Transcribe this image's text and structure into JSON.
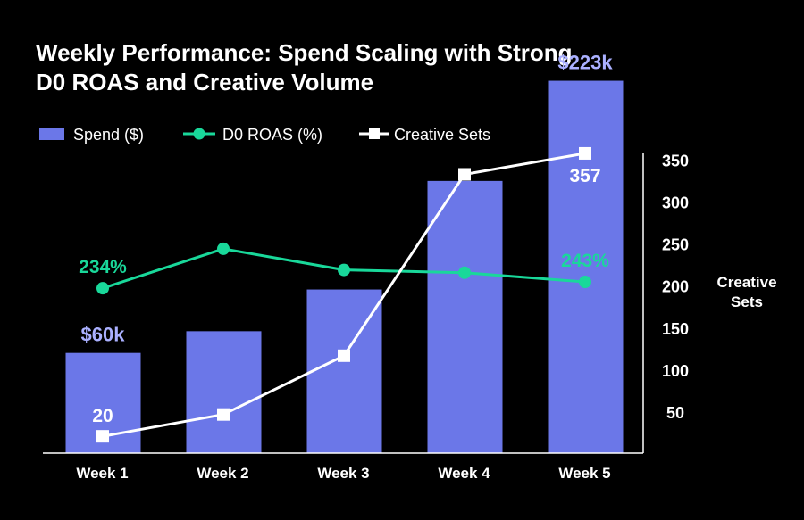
{
  "chart_data": {
    "type": "bar",
    "title_lines": [
      "Weekly Performance: Spend Scaling with Strong",
      "D0 ROAS and Creative Volume"
    ],
    "categories": [
      "Week 1",
      "Week 2",
      "Week 3",
      "Week 4",
      "Week 5"
    ],
    "series": [
      {
        "name": "Spend ($)",
        "type": "bar",
        "values": [
          60,
          73,
          98,
          163,
          223
        ],
        "unit": "$k",
        "data_labels": [
          {
            "index": 0,
            "text": "$60k"
          },
          {
            "index": 4,
            "text": "$223k"
          }
        ],
        "color": "#6b77e8"
      },
      {
        "name": "D0 ROAS (%)",
        "type": "line",
        "values": [
          234,
          290,
          260,
          256,
          243
        ],
        "data_labels": [
          {
            "index": 0,
            "text": "234%"
          },
          {
            "index": 4,
            "text": "243%"
          }
        ],
        "color": "#19d89a"
      },
      {
        "name": "Creative Sets",
        "type": "line",
        "axis": "right",
        "values": [
          20,
          46,
          116,
          332,
          357
        ],
        "data_labels": [
          {
            "index": 0,
            "text": "20"
          },
          {
            "index": 4,
            "text": "357"
          }
        ],
        "color": "#ffffff"
      }
    ],
    "right_axis": {
      "label_lines": [
        "Creative",
        "Sets"
      ],
      "ticks": [
        50,
        100,
        150,
        200,
        250,
        300,
        350
      ],
      "range": [
        0,
        375
      ]
    },
    "spend_axis_range": [
      0,
      250
    ],
    "roas_axis_range": [
      0,
      500
    ],
    "legend_position": "top-left",
    "grid": false,
    "background": "#000000"
  }
}
